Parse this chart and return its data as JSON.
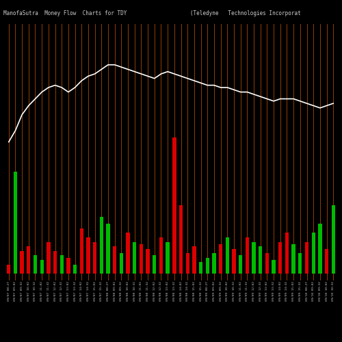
{
  "title": "ManofaSutra  Money Flow  Charts for TDY                    (Teledyne   Technologies Incorporat",
  "bg_color": "#000000",
  "bar_colors": [
    "red",
    "green",
    "red",
    "red",
    "green",
    "green",
    "red",
    "red",
    "green",
    "red",
    "green",
    "red",
    "red",
    "red",
    "green",
    "green",
    "red",
    "green",
    "red",
    "green",
    "red",
    "red",
    "green",
    "red",
    "green",
    "red",
    "red",
    "red",
    "red",
    "green",
    "green",
    "green",
    "red",
    "green",
    "red",
    "green",
    "red",
    "green",
    "green",
    "red",
    "green",
    "red",
    "red",
    "green",
    "green",
    "red",
    "green",
    "green",
    "red",
    "green"
  ],
  "bar_heights": [
    4,
    45,
    10,
    12,
    8,
    6,
    14,
    10,
    8,
    7,
    4,
    20,
    16,
    14,
    25,
    22,
    12,
    9,
    18,
    14,
    13,
    11,
    8,
    16,
    14,
    60,
    30,
    9,
    12,
    5,
    7,
    9,
    13,
    16,
    11,
    8,
    16,
    14,
    12,
    9,
    6,
    14,
    18,
    13,
    9,
    14,
    18,
    22,
    11,
    30
  ],
  "price_line": [
    58,
    63,
    70,
    74,
    77,
    80,
    82,
    83,
    82,
    80,
    82,
    85,
    87,
    88,
    90,
    92,
    92,
    91,
    90,
    89,
    88,
    87,
    86,
    88,
    89,
    88,
    87,
    86,
    85,
    84,
    83,
    83,
    82,
    82,
    81,
    80,
    80,
    79,
    78,
    77,
    76,
    77,
    77,
    77,
    76,
    75,
    74,
    73,
    74,
    75
  ],
  "x_labels": [
    "09/07 08:27",
    "09/07 09:02",
    "09/07 09:32",
    "09/07 10:02",
    "09/07 10:32",
    "09/07 11:02",
    "09/07 11:32",
    "09/07 12:02",
    "09/07 12:32",
    "09/07 13:02",
    "09/07 13:32",
    "09/07 14:02",
    "09/07 14:32",
    "09/07 15:02",
    "09/07 15:32",
    "09/08 08:27",
    "09/08 09:02",
    "09/08 09:32",
    "09/08 10:02",
    "09/08 10:32",
    "09/08 11:02",
    "09/08 11:32",
    "09/08 12:02",
    "09/08 12:32",
    "09/08 13:02",
    "09/08 13:32",
    "09/08 14:02",
    "09/08 14:32",
    "09/08 15:02",
    "09/08 15:32",
    "09/09 08:27",
    "09/09 09:02",
    "09/09 09:32",
    "09/09 10:02",
    "09/09 10:32",
    "09/09 11:02",
    "09/09 11:32",
    "09/09 12:02",
    "09/09 12:32",
    "09/09 13:02",
    "09/09 13:32",
    "09/09 14:02",
    "09/09 14:32",
    "09/09 15:02",
    "09/09 15:32",
    "09/10 08:27",
    "09/10 09:02",
    "09/10 09:32",
    "09/10 10:02",
    "09/10 10:32"
  ],
  "orange_line_color": "#cc5500",
  "white_line_color": "#ffffff",
  "red_bar_color": "#dd0000",
  "green_bar_color": "#00bb00",
  "title_fontsize": 5.5,
  "title_color": "#cccccc",
  "tick_label_color": "#cccccc",
  "tick_fontsize": 3.2,
  "ylim_max": 110,
  "ylim_min": -3
}
